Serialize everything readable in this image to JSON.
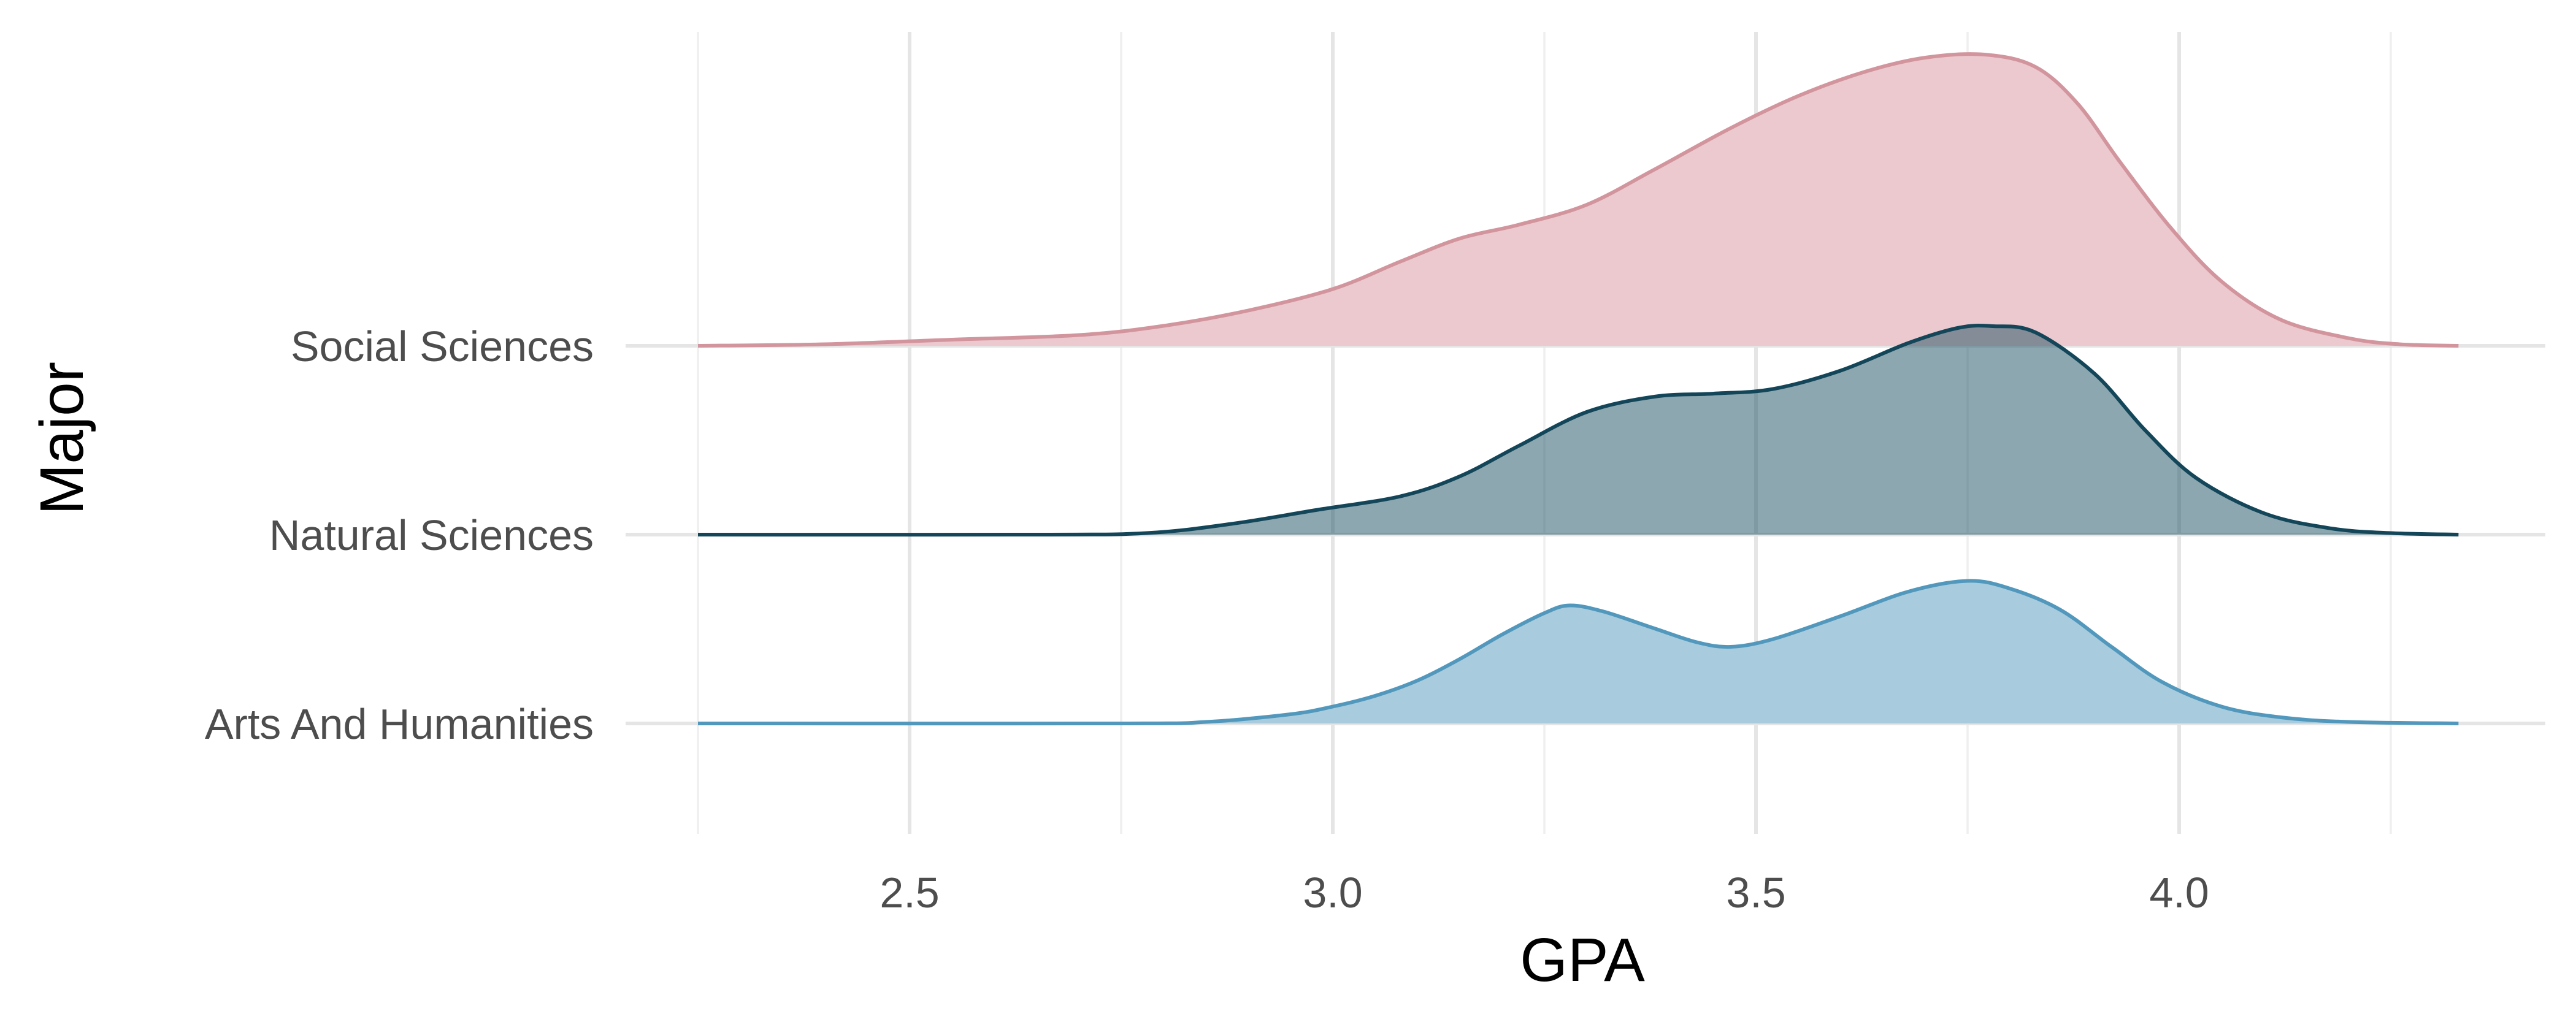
{
  "chart_data": {
    "type": "ridgeline",
    "xlabel": "GPA",
    "ylabel": "Major",
    "x_range": [
      2.25,
      4.33
    ],
    "x_ticks": [
      "2.5",
      "3.0",
      "3.5",
      "4.0"
    ],
    "grid": true,
    "legend": "none",
    "series": [
      {
        "name": "Arts And Humanities",
        "fill": "#a8ccdd",
        "line": "#5298bd",
        "fill_opacity": 1.0,
        "points": [
          [
            2.25,
            0
          ],
          [
            2.75,
            0
          ],
          [
            2.85,
            0.01
          ],
          [
            2.95,
            0.06
          ],
          [
            3.0,
            0.11
          ],
          [
            3.05,
            0.18
          ],
          [
            3.1,
            0.28
          ],
          [
            3.15,
            0.42
          ],
          [
            3.2,
            0.58
          ],
          [
            3.25,
            0.72
          ],
          [
            3.28,
            0.77
          ],
          [
            3.32,
            0.73
          ],
          [
            3.38,
            0.62
          ],
          [
            3.43,
            0.53
          ],
          [
            3.47,
            0.5
          ],
          [
            3.52,
            0.55
          ],
          [
            3.6,
            0.7
          ],
          [
            3.68,
            0.86
          ],
          [
            3.75,
            0.93
          ],
          [
            3.8,
            0.88
          ],
          [
            3.86,
            0.74
          ],
          [
            3.92,
            0.5
          ],
          [
            3.98,
            0.27
          ],
          [
            4.05,
            0.11
          ],
          [
            4.12,
            0.04
          ],
          [
            4.2,
            0.01
          ],
          [
            4.33,
            0
          ]
        ]
      },
      {
        "name": "Natural Sciences",
        "fill": "#1a5060",
        "line": "#14465a",
        "fill_opacity": 0.5,
        "points": [
          [
            2.25,
            0
          ],
          [
            2.65,
            0
          ],
          [
            2.78,
            0.01
          ],
          [
            2.88,
            0.07
          ],
          [
            2.98,
            0.16
          ],
          [
            3.08,
            0.25
          ],
          [
            3.15,
            0.38
          ],
          [
            3.22,
            0.58
          ],
          [
            3.3,
            0.8
          ],
          [
            3.38,
            0.9
          ],
          [
            3.45,
            0.92
          ],
          [
            3.52,
            0.95
          ],
          [
            3.6,
            1.07
          ],
          [
            3.68,
            1.25
          ],
          [
            3.74,
            1.35
          ],
          [
            3.78,
            1.36
          ],
          [
            3.83,
            1.32
          ],
          [
            3.9,
            1.05
          ],
          [
            3.96,
            0.68
          ],
          [
            4.02,
            0.37
          ],
          [
            4.1,
            0.14
          ],
          [
            4.18,
            0.04
          ],
          [
            4.25,
            0.01
          ],
          [
            4.33,
            0
          ]
        ]
      },
      {
        "name": "Social Sciences",
        "fill": "#ecc9cf",
        "line": "#d2959d",
        "fill_opacity": 1.0,
        "points": [
          [
            2.25,
            0
          ],
          [
            2.4,
            0.01
          ],
          [
            2.55,
            0.04
          ],
          [
            2.7,
            0.07
          ],
          [
            2.8,
            0.13
          ],
          [
            2.9,
            0.23
          ],
          [
            3.0,
            0.37
          ],
          [
            3.08,
            0.55
          ],
          [
            3.15,
            0.7
          ],
          [
            3.22,
            0.79
          ],
          [
            3.3,
            0.92
          ],
          [
            3.38,
            1.15
          ],
          [
            3.47,
            1.42
          ],
          [
            3.55,
            1.63
          ],
          [
            3.63,
            1.79
          ],
          [
            3.7,
            1.88
          ],
          [
            3.77,
            1.9
          ],
          [
            3.83,
            1.82
          ],
          [
            3.88,
            1.58
          ],
          [
            3.93,
            1.2
          ],
          [
            3.99,
            0.77
          ],
          [
            4.05,
            0.42
          ],
          [
            4.12,
            0.17
          ],
          [
            4.2,
            0.05
          ],
          [
            4.26,
            0.01
          ],
          [
            4.33,
            0
          ]
        ]
      }
    ]
  }
}
